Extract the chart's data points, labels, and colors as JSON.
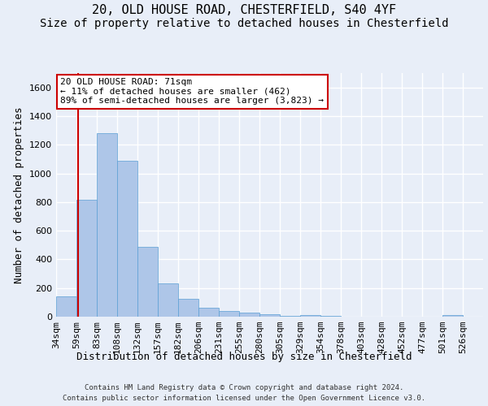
{
  "title1": "20, OLD HOUSE ROAD, CHESTERFIELD, S40 4YF",
  "title2": "Size of property relative to detached houses in Chesterfield",
  "xlabel": "Distribution of detached houses by size in Chesterfield",
  "ylabel": "Number of detached properties",
  "footer1": "Contains HM Land Registry data © Crown copyright and database right 2024.",
  "footer2": "Contains public sector information licensed under the Open Government Licence v3.0.",
  "categories": [
    "34sqm",
    "59sqm",
    "83sqm",
    "108sqm",
    "132sqm",
    "157sqm",
    "182sqm",
    "206sqm",
    "231sqm",
    "255sqm",
    "280sqm",
    "305sqm",
    "329sqm",
    "354sqm",
    "378sqm",
    "403sqm",
    "428sqm",
    "452sqm",
    "477sqm",
    "501sqm",
    "526sqm"
  ],
  "values": [
    140,
    815,
    1280,
    1090,
    490,
    235,
    125,
    65,
    38,
    27,
    15,
    3,
    13,
    3,
    0,
    0,
    0,
    0,
    0,
    10,
    0
  ],
  "bar_color": "#aec6e8",
  "bar_edge_color": "#5a9fd4",
  "bar_width": 1.0,
  "ylim": [
    0,
    1700
  ],
  "yticks": [
    0,
    200,
    400,
    600,
    800,
    1000,
    1200,
    1400,
    1600
  ],
  "property_line_x": 1.095,
  "property_line_color": "#cc0000",
  "annotation_text": "20 OLD HOUSE ROAD: 71sqm\n← 11% of detached houses are smaller (462)\n89% of semi-detached houses are larger (3,823) →",
  "annotation_box_color": "#ffffff",
  "annotation_box_edge": "#cc0000",
  "background_color": "#e8eef8",
  "plot_bg_color": "#e8eef8",
  "grid_color": "#ffffff",
  "title_fontsize": 11,
  "subtitle_fontsize": 10,
  "axis_label_fontsize": 9,
  "tick_fontsize": 8,
  "footer_fontsize": 6.5,
  "ann_fontsize": 8
}
